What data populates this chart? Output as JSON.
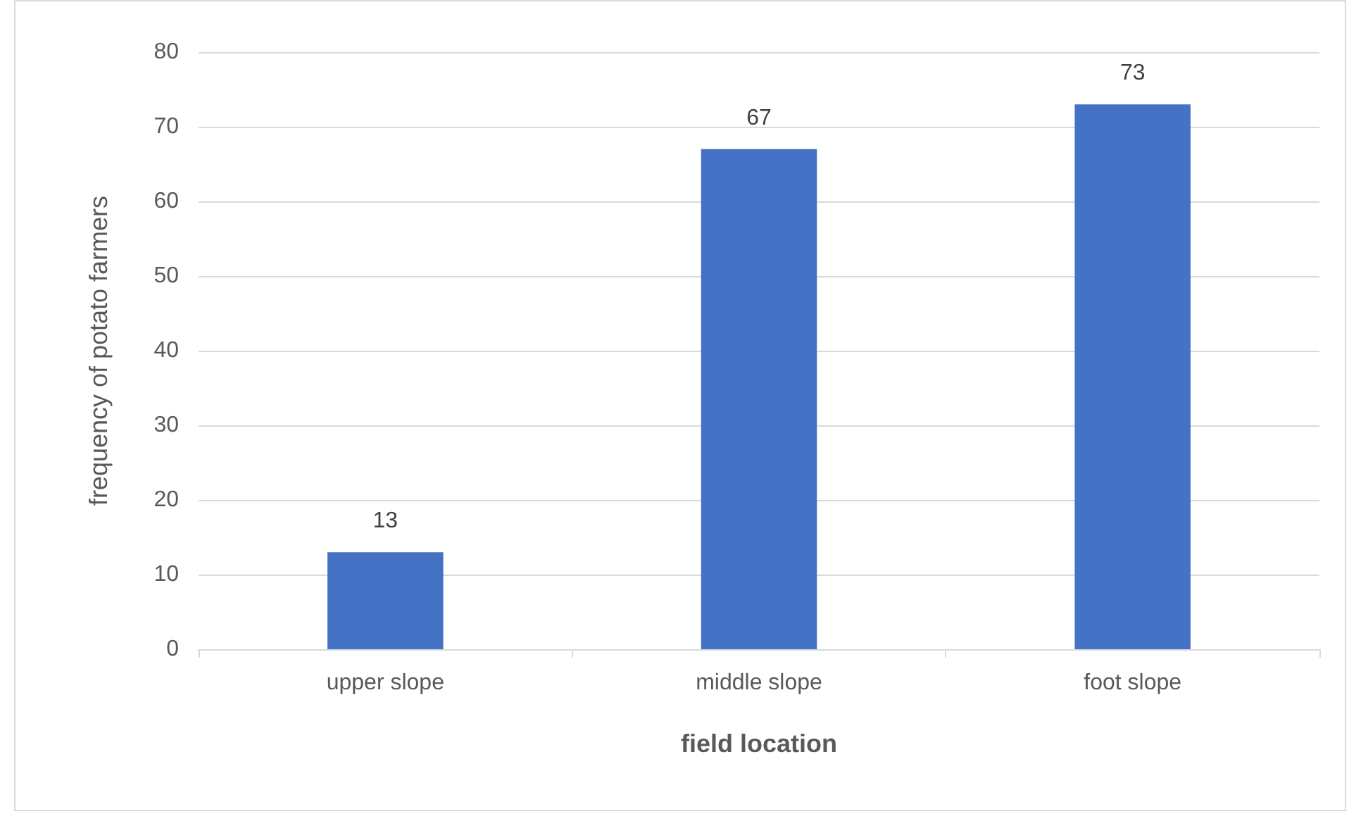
{
  "chart_data": {
    "type": "bar",
    "xlabel": "field location",
    "ylabel": "frequency of potato farmers",
    "categories": [
      "upper slope",
      "middle slope",
      "foot slope"
    ],
    "values": [
      13,
      67,
      73
    ],
    "color": "#4472c4",
    "ylim": [
      0,
      80
    ],
    "yticks": [
      0,
      10,
      20,
      30,
      40,
      50,
      60,
      70,
      80
    ],
    "grid": "y",
    "data_labels": true
  }
}
